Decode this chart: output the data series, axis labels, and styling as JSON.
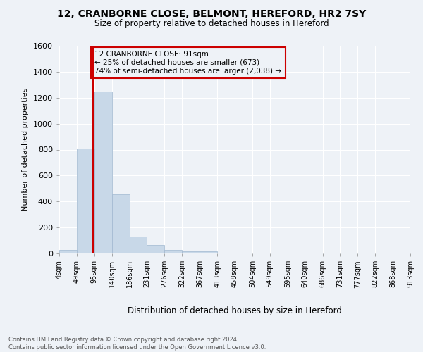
{
  "title_line1": "12, CRANBORNE CLOSE, BELMONT, HEREFORD, HR2 7SY",
  "title_line2": "Size of property relative to detached houses in Hereford",
  "xlabel": "Distribution of detached houses by size in Hereford",
  "ylabel": "Number of detached properties",
  "bar_color": "#c8d8e8",
  "bar_edge_color": "#a0b8d0",
  "highlight_line_color": "#cc0000",
  "highlight_box_color": "#cc0000",
  "annotation_text": "12 CRANBORNE CLOSE: 91sqm\n← 25% of detached houses are smaller (673)\n74% of semi-detached houses are larger (2,038) →",
  "property_size_sqm": 91,
  "bin_edges": [
    4,
    49,
    95,
    140,
    186,
    231,
    276,
    322,
    367,
    413,
    458,
    504,
    549,
    595,
    640,
    686,
    731,
    777,
    822,
    868,
    913
  ],
  "bar_heights": [
    25,
    810,
    1250,
    455,
    130,
    65,
    25,
    15,
    15,
    0,
    0,
    0,
    0,
    0,
    0,
    0,
    0,
    0,
    0,
    0
  ],
  "ylim": [
    0,
    1600
  ],
  "yticks": [
    0,
    200,
    400,
    600,
    800,
    1000,
    1200,
    1400,
    1600
  ],
  "background_color": "#eef2f7",
  "grid_color": "#ffffff",
  "footnote": "Contains HM Land Registry data © Crown copyright and database right 2024.\nContains public sector information licensed under the Open Government Licence v3.0."
}
